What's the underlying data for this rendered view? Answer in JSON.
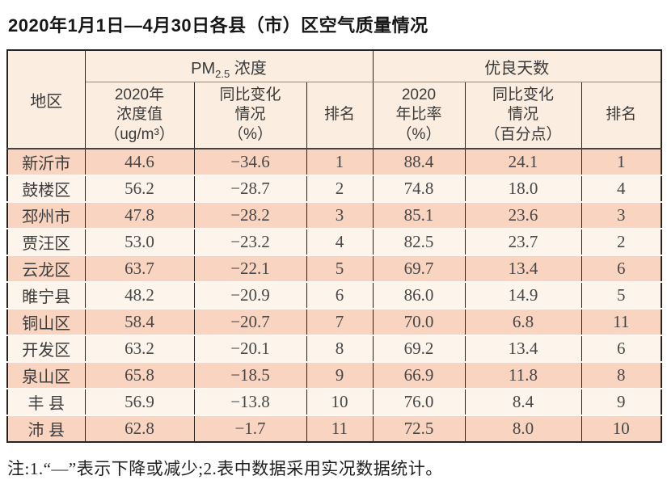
{
  "page": {
    "title": "2020年1月1日—4月30日各县（市）区空气质量情况",
    "footnote": "注:1.“—”表示下降或减少;2.表中数据采用实况数据统计。"
  },
  "colors": {
    "row_odd_bg": "#f8d4c1",
    "row_even_bg": "#fdf4ec",
    "header_bg": "#fbeee1",
    "border_dark": "#262320",
    "header_divider_gray": "#908c87",
    "row_separator": "#fef7f1"
  },
  "table": {
    "header": {
      "region": "地区",
      "pm_prefix": "PM",
      "pm_sub": "2.5",
      "pm_suffix": " 浓度",
      "good_days": "优良天数"
    },
    "sub_headers": [
      {
        "name": "header-2020-concentration",
        "lines": [
          "2020年",
          "浓度值",
          "（ug/m³）"
        ]
      },
      {
        "name": "header-yoy-change-pct",
        "lines": [
          "同比变化",
          "情况",
          "（%）"
        ]
      },
      {
        "name": "header-pm25-rank",
        "lines": [
          "排名"
        ]
      },
      {
        "name": "header-2020-ratio",
        "lines": [
          "2020",
          "年比率",
          "（%）"
        ]
      },
      {
        "name": "header-yoy-change-points",
        "lines": [
          "同比变化",
          "情况",
          "（百分点）"
        ]
      },
      {
        "name": "header-good-days-rank",
        "lines": [
          "排名"
        ]
      }
    ],
    "rows": [
      {
        "region": "新沂市",
        "values": [
          "44.6",
          "−34.6",
          "1",
          "88.4",
          "24.1",
          "1"
        ]
      },
      {
        "region": "鼓楼区",
        "values": [
          "56.2",
          "−28.7",
          "2",
          "74.8",
          "18.0",
          "4"
        ]
      },
      {
        "region": "邳州市",
        "values": [
          "47.8",
          "−28.2",
          "3",
          "85.1",
          "23.6",
          "3"
        ]
      },
      {
        "region": "贾汪区",
        "values": [
          "53.0",
          "−23.2",
          "4",
          "82.5",
          "23.7",
          "2"
        ]
      },
      {
        "region": "云龙区",
        "values": [
          "63.7",
          "−22.1",
          "5",
          "69.7",
          "13.4",
          "6"
        ]
      },
      {
        "region": "睢宁县",
        "values": [
          "48.2",
          "−20.9",
          "6",
          "86.0",
          "14.9",
          "5"
        ]
      },
      {
        "region": "铜山区",
        "values": [
          "58.4",
          "−20.7",
          "7",
          "70.0",
          "6.8",
          "11"
        ]
      },
      {
        "region": "开发区",
        "values": [
          "63.2",
          "−20.1",
          "8",
          "69.2",
          "13.4",
          "6"
        ]
      },
      {
        "region": "泉山区",
        "values": [
          "65.8",
          "−18.5",
          "9",
          "66.9",
          "11.8",
          "8"
        ]
      },
      {
        "region": "丰 县",
        "values": [
          "56.9",
          "−13.8",
          "10",
          "76.0",
          "8.4",
          "9"
        ]
      },
      {
        "region": "沛 县",
        "values": [
          "62.8",
          "−1.7",
          "11",
          "72.5",
          "8.0",
          "10"
        ]
      }
    ]
  }
}
